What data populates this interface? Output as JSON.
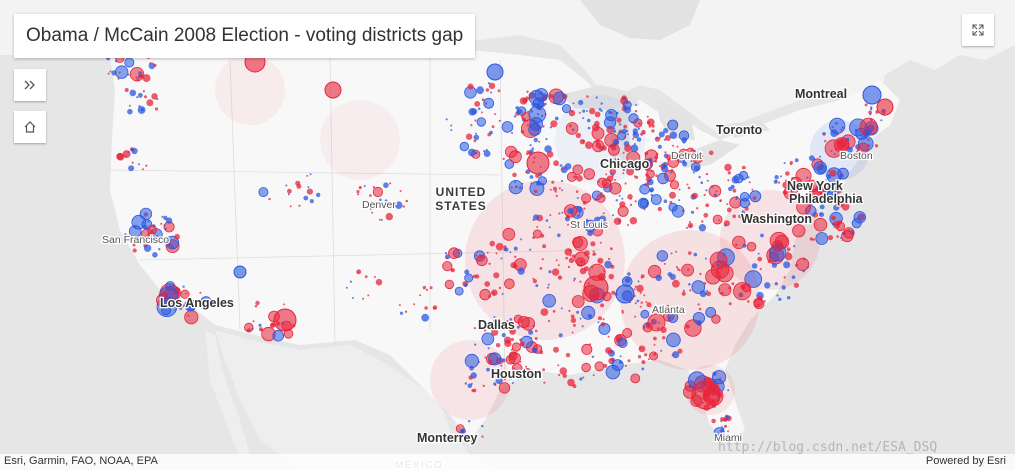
{
  "title": "Obama / McCain 2008 Election - voting districts gap",
  "controls": {
    "expand_icon": "chevrons-right-icon",
    "home_icon": "home-icon",
    "fullscreen_icon": "fullscreen-icon"
  },
  "colors": {
    "obama": "#2957e0",
    "mccain": "#e8243a",
    "land": "#f7f7f7",
    "water": "#e4e4e4"
  },
  "labels": {
    "countries": [
      {
        "id": "united-states",
        "line1": "UNITED",
        "line2": "STATES"
      },
      {
        "id": "mexico",
        "line1": "MÉXICO"
      }
    ],
    "cities": [
      {
        "id": "montreal",
        "name": "Montreal",
        "major": true
      },
      {
        "id": "toronto",
        "name": "Toronto",
        "major": true
      },
      {
        "id": "chicago",
        "name": "Chicago",
        "major": true
      },
      {
        "id": "detroit",
        "name": "Detroit",
        "major": false
      },
      {
        "id": "boston",
        "name": "Boston",
        "major": false
      },
      {
        "id": "new-york",
        "name": "New York",
        "major": true
      },
      {
        "id": "philadelphia",
        "name": "Philadelphia",
        "major": true
      },
      {
        "id": "washington",
        "name": "Washington",
        "major": true
      },
      {
        "id": "st-louis",
        "name": "St Louis",
        "major": false
      },
      {
        "id": "denver",
        "name": "Denver",
        "major": false
      },
      {
        "id": "san-francisco",
        "name": "San Francisco",
        "major": false
      },
      {
        "id": "los-angeles",
        "name": "Los Angeles",
        "major": true
      },
      {
        "id": "atlanta",
        "name": "Atlanta",
        "major": false
      },
      {
        "id": "dallas",
        "name": "Dallas",
        "major": true
      },
      {
        "id": "houston",
        "name": "Houston",
        "major": true
      },
      {
        "id": "monterrey",
        "name": "Monterrey",
        "major": true
      },
      {
        "id": "miami",
        "name": "Miami",
        "major": false
      }
    ]
  },
  "attribution": {
    "left": "Esri, Garmin, FAO, NOAA, EPA",
    "right": "Powered by Esri"
  },
  "watermark": "http://blog.csdn.net/ESA_DSQ"
}
